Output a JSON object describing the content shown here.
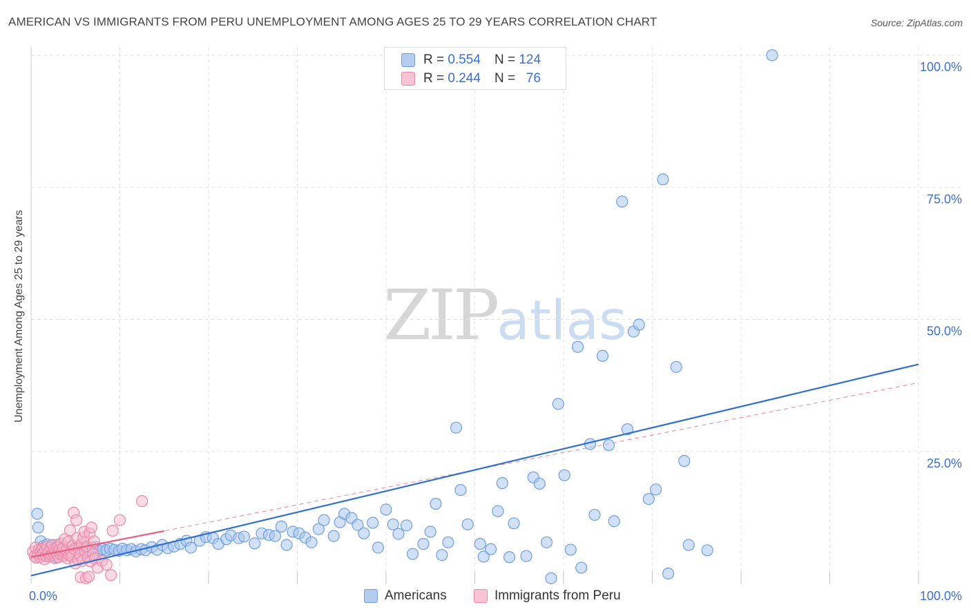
{
  "title": "AMERICAN VS IMMIGRANTS FROM PERU UNEMPLOYMENT AMONG AGES 25 TO 29 YEARS CORRELATION CHART",
  "source": "Source: ZipAtlas.com",
  "watermark": {
    "zip": "ZIP",
    "atlas": "atlas"
  },
  "legend_top": {
    "rows": [
      {
        "r_label": "R = ",
        "r_value": "0.554",
        "n_label": "N = ",
        "n_value": "124"
      },
      {
        "r_label": "R = ",
        "r_value": "0.244",
        "n_label": "N = ",
        "n_value": "76"
      }
    ]
  },
  "legend_bottom": {
    "items": [
      "Americans",
      "Immigrants from Peru"
    ]
  },
  "colors": {
    "blue_fill": "#a9c7ef",
    "blue_stroke": "#6f9ede",
    "blue_line": "#2f6fd1",
    "pink_fill": "#f6b8cc",
    "pink_stroke": "#ec86a6",
    "pink_line": "#e8607f",
    "tick_label": "#3a6fd0",
    "grid": "#e3e3e3"
  },
  "chart_data": {
    "type": "scatter",
    "title": "AMERICAN VS IMMIGRANTS FROM PERU UNEMPLOYMENT AMONG AGES 25 TO 29 YEARS CORRELATION CHART",
    "xlabel": "",
    "ylabel": "Unemployment Among Ages 25 to 29 years",
    "xlim": [
      0,
      100
    ],
    "ylim": [
      0,
      100
    ],
    "x_tick_labels": [
      "0.0%",
      "100.0%"
    ],
    "y_ticks": [
      25,
      50,
      75,
      100
    ],
    "y_tick_labels": [
      "25.0%",
      "50.0%",
      "75.0%",
      "100.0%"
    ],
    "grid": true,
    "series": [
      {
        "name": "Americans",
        "r": 0.554,
        "n": 124,
        "trend": {
          "x": [
            0,
            100
          ],
          "y": [
            1.5,
            41.5
          ]
        },
        "points": [
          [
            0.7,
            13.2
          ],
          [
            0.8,
            10.6
          ],
          [
            1.1,
            8.0
          ],
          [
            1.3,
            7.0
          ],
          [
            1.5,
            6.1
          ],
          [
            1.6,
            5.4
          ],
          [
            1.8,
            7.4
          ],
          [
            2.0,
            6.5
          ],
          [
            2.2,
            5.6
          ],
          [
            2.4,
            7.2
          ],
          [
            2.6,
            6.0
          ],
          [
            2.8,
            5.0
          ],
          [
            3.0,
            7.3
          ],
          [
            3.2,
            6.1
          ],
          [
            3.4,
            5.8
          ],
          [
            3.6,
            6.8
          ],
          [
            3.8,
            5.4
          ],
          [
            4.0,
            6.3
          ],
          [
            4.2,
            5.6
          ],
          [
            4.5,
            6.8
          ],
          [
            4.8,
            6.2
          ],
          [
            5.2,
            6.8
          ],
          [
            5.5,
            5.9
          ],
          [
            5.8,
            6.4
          ],
          [
            6.2,
            6.6
          ],
          [
            6.6,
            6.2
          ],
          [
            7.0,
            6.0
          ],
          [
            7.3,
            6.9
          ],
          [
            7.7,
            6.1
          ],
          [
            8.1,
            6.5
          ],
          [
            8.5,
            6.3
          ],
          [
            8.9,
            6.6
          ],
          [
            9.4,
            6.4
          ],
          [
            9.9,
            6.2
          ],
          [
            10.3,
            6.6
          ],
          [
            10.8,
            6.3
          ],
          [
            11.3,
            6.5
          ],
          [
            11.8,
            6.1
          ],
          [
            12.4,
            6.5
          ],
          [
            12.9,
            6.3
          ],
          [
            13.6,
            6.9
          ],
          [
            14.2,
            6.4
          ],
          [
            14.8,
            7.3
          ],
          [
            15.4,
            6.7
          ],
          [
            16.1,
            7.0
          ],
          [
            16.8,
            7.5
          ],
          [
            17.5,
            8.1
          ],
          [
            18.0,
            6.8
          ],
          [
            19.0,
            8.1
          ],
          [
            19.7,
            8.8
          ],
          [
            20.5,
            8.6
          ],
          [
            21.1,
            7.5
          ],
          [
            22.0,
            8.4
          ],
          [
            22.5,
            9.1
          ],
          [
            23.4,
            8.6
          ],
          [
            24.0,
            8.9
          ],
          [
            25.2,
            7.6
          ],
          [
            26.0,
            9.5
          ],
          [
            26.8,
            9.2
          ],
          [
            27.5,
            9.0
          ],
          [
            28.2,
            10.8
          ],
          [
            28.8,
            7.3
          ],
          [
            29.5,
            9.8
          ],
          [
            30.2,
            9.5
          ],
          [
            30.9,
            8.7
          ],
          [
            31.6,
            7.8
          ],
          [
            32.4,
            10.3
          ],
          [
            33.0,
            12.0
          ],
          [
            34.1,
            9.0
          ],
          [
            34.8,
            11.6
          ],
          [
            35.3,
            13.2
          ],
          [
            36.1,
            12.4
          ],
          [
            36.8,
            11.1
          ],
          [
            37.5,
            9.5
          ],
          [
            38.5,
            11.5
          ],
          [
            39.1,
            6.8
          ],
          [
            40.0,
            14.0
          ],
          [
            40.8,
            11.2
          ],
          [
            41.4,
            9.4
          ],
          [
            42.3,
            11.0
          ],
          [
            43.0,
            5.6
          ],
          [
            44.2,
            7.5
          ],
          [
            45.0,
            9.8
          ],
          [
            45.6,
            15.1
          ],
          [
            46.3,
            5.4
          ],
          [
            47.0,
            7.8
          ],
          [
            47.9,
            29.5
          ],
          [
            48.4,
            17.7
          ],
          [
            49.2,
            11.2
          ],
          [
            50.6,
            7.5
          ],
          [
            51.0,
            5.1
          ],
          [
            51.8,
            6.5
          ],
          [
            52.6,
            13.7
          ],
          [
            53.1,
            19.0
          ],
          [
            53.9,
            5.0
          ],
          [
            54.4,
            11.4
          ],
          [
            55.8,
            5.2
          ],
          [
            56.6,
            20.1
          ],
          [
            57.3,
            18.9
          ],
          [
            58.1,
            7.8
          ],
          [
            58.6,
            1.0
          ],
          [
            59.4,
            34.0
          ],
          [
            60.1,
            20.5
          ],
          [
            60.8,
            6.4
          ],
          [
            61.6,
            44.8
          ],
          [
            62.0,
            3.0
          ],
          [
            63.0,
            26.4
          ],
          [
            63.5,
            13.0
          ],
          [
            64.4,
            43.1
          ],
          [
            65.1,
            26.2
          ],
          [
            65.7,
            11.8
          ],
          [
            66.6,
            72.3
          ],
          [
            67.2,
            29.2
          ],
          [
            67.9,
            47.7
          ],
          [
            68.5,
            49.0
          ],
          [
            69.6,
            16.0
          ],
          [
            70.4,
            17.8
          ],
          [
            71.2,
            76.5
          ],
          [
            71.8,
            1.9
          ],
          [
            72.7,
            41.0
          ],
          [
            73.6,
            23.2
          ],
          [
            74.1,
            7.3
          ],
          [
            76.2,
            6.3
          ],
          [
            83.5,
            100.0
          ]
        ]
      },
      {
        "name": "Immigrants from Peru",
        "r": 0.244,
        "n": 76,
        "trend": {
          "x": [
            0,
            100
          ],
          "y": [
            5.0,
            38.0
          ]
        },
        "points": [
          [
            0.2,
            6.0
          ],
          [
            0.4,
            5.2
          ],
          [
            0.5,
            6.8
          ],
          [
            0.6,
            4.9
          ],
          [
            0.8,
            5.6
          ],
          [
            0.9,
            6.4
          ],
          [
            1.0,
            5.0
          ],
          [
            1.1,
            6.1
          ],
          [
            1.2,
            5.5
          ],
          [
            1.3,
            6.6
          ],
          [
            1.4,
            5.9
          ],
          [
            1.5,
            4.6
          ],
          [
            1.6,
            6.3
          ],
          [
            1.7,
            5.2
          ],
          [
            1.8,
            7.0
          ],
          [
            1.9,
            5.7
          ],
          [
            2.0,
            6.0
          ],
          [
            2.1,
            5.1
          ],
          [
            2.2,
            6.8
          ],
          [
            2.3,
            5.4
          ],
          [
            2.4,
            7.3
          ],
          [
            2.5,
            5.8
          ],
          [
            2.6,
            6.5
          ],
          [
            2.7,
            4.8
          ],
          [
            2.8,
            6.1
          ],
          [
            2.9,
            5.5
          ],
          [
            3.0,
            6.9
          ],
          [
            3.1,
            5.0
          ],
          [
            3.2,
            6.4
          ],
          [
            3.3,
            5.6
          ],
          [
            3.4,
            7.6
          ],
          [
            3.5,
            5.9
          ],
          [
            3.6,
            6.7
          ],
          [
            3.7,
            5.2
          ],
          [
            3.8,
            8.4
          ],
          [
            3.9,
            5.8
          ],
          [
            4.0,
            6.3
          ],
          [
            4.1,
            4.8
          ],
          [
            4.2,
            7.9
          ],
          [
            4.3,
            5.4
          ],
          [
            4.4,
            10.1
          ],
          [
            4.5,
            6.0
          ],
          [
            4.6,
            5.1
          ],
          [
            4.7,
            7.2
          ],
          [
            4.8,
            13.4
          ],
          [
            4.9,
            6.5
          ],
          [
            5.0,
            3.8
          ],
          [
            5.1,
            12.0
          ],
          [
            5.2,
            8.6
          ],
          [
            5.3,
            4.5
          ],
          [
            5.4,
            6.6
          ],
          [
            5.5,
            5.3
          ],
          [
            5.6,
            1.2
          ],
          [
            5.7,
            7.5
          ],
          [
            5.8,
            4.3
          ],
          [
            5.9,
            8.7
          ],
          [
            6.0,
            9.8
          ],
          [
            6.1,
            6.1
          ],
          [
            6.2,
            1.0
          ],
          [
            6.3,
            7.0
          ],
          [
            6.4,
            5.0
          ],
          [
            6.5,
            1.3
          ],
          [
            6.6,
            9.5
          ],
          [
            6.7,
            4.2
          ],
          [
            6.8,
            10.6
          ],
          [
            6.9,
            6.8
          ],
          [
            7.0,
            5.6
          ],
          [
            7.1,
            8.0
          ],
          [
            7.2,
            4.7
          ],
          [
            7.5,
            3.0
          ],
          [
            8.0,
            4.3
          ],
          [
            8.5,
            3.6
          ],
          [
            9.0,
            1.6
          ],
          [
            9.2,
            10.0
          ],
          [
            10.0,
            12.0
          ],
          [
            12.5,
            15.6
          ]
        ]
      }
    ]
  }
}
